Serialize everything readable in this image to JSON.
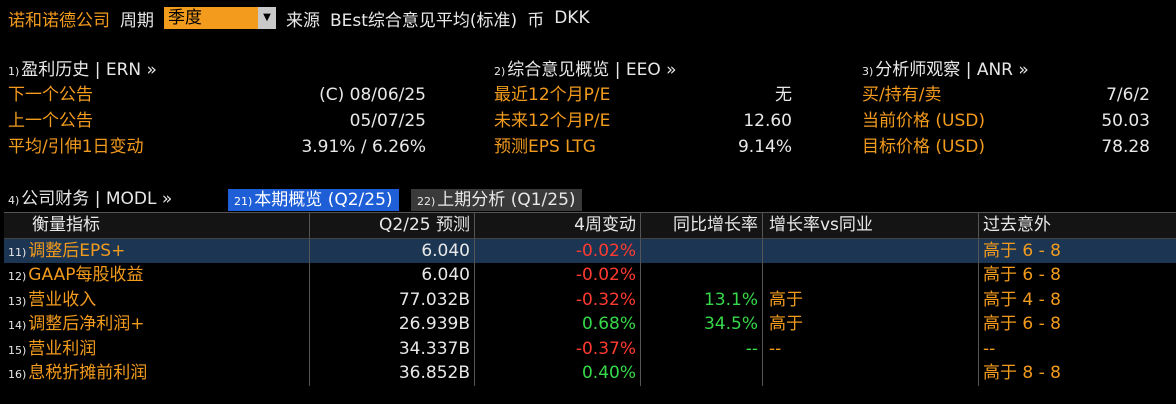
{
  "header": {
    "company": "诺和诺德公司",
    "period_label": "周期",
    "period_value": "季度",
    "source_label": "来源",
    "source_value": "BEst综合意见平均(标准)",
    "currency_label": "币",
    "currency_value": "DKK"
  },
  "panels": {
    "earnings": {
      "idx": "1)",
      "title": "盈利历史 | ERN »",
      "rows": [
        {
          "label": "下一个公告",
          "value": "(C)  08/06/25"
        },
        {
          "label": "上一个公告",
          "value": "05/07/25"
        },
        {
          "label": "平均/引伸1日变动",
          "value": "3.91% / 6.26%"
        }
      ]
    },
    "consensus": {
      "idx": "2)",
      "title": "综合意见概览 | EEO »",
      "rows": [
        {
          "label": "最近12个月P/E",
          "value": "无"
        },
        {
          "label": "未来12个月P/E",
          "value": "12.60"
        },
        {
          "label": "预测EPS LTG",
          "value": "9.14%"
        }
      ]
    },
    "analyst": {
      "idx": "3)",
      "title": "分析师观察 | ANR »",
      "rows": [
        {
          "label": "买/持有/卖",
          "value": "7/6/2"
        },
        {
          "label": "当前价格 (USD)",
          "value": "50.03"
        },
        {
          "label": "目标价格 (USD)",
          "value": "78.28"
        }
      ]
    }
  },
  "financials": {
    "idx": "4)",
    "title": "公司财务 | MODL »",
    "tab_current": {
      "idx": "21)",
      "label": "本期概览 (Q2/25)"
    },
    "tab_prev": {
      "idx": "22)",
      "label": "上期分析 (Q1/25)"
    }
  },
  "table": {
    "headers": [
      "衡量指标",
      "Q2/25 预测",
      "4周变动",
      "同比增长率",
      "增长率vs同业",
      "过去意外"
    ],
    "rows": [
      {
        "idx": "11)",
        "metric": "调整后EPS+",
        "forecast": "6.040",
        "change4w": "-0.02%",
        "change_dir": "red",
        "yoy": "",
        "vs_peer": "",
        "surprise": "高于 6 - 8"
      },
      {
        "idx": "12)",
        "metric": "GAAP每股收益",
        "forecast": "6.040",
        "change4w": "-0.02%",
        "change_dir": "red",
        "yoy": "",
        "vs_peer": "",
        "surprise": "高于 6 - 8"
      },
      {
        "idx": "13)",
        "metric": "营业收入",
        "forecast": "77.032B",
        "change4w": "-0.32%",
        "change_dir": "red",
        "yoy": "13.1%",
        "vs_peer": "高于",
        "surprise": "高于 4 - 8"
      },
      {
        "idx": "14)",
        "metric": "调整后净利润+",
        "forecast": "26.939B",
        "change4w": "0.68%",
        "change_dir": "green",
        "yoy": "34.5%",
        "vs_peer": "高于",
        "surprise": "高于 6 - 8"
      },
      {
        "idx": "15)",
        "metric": "营业利润",
        "forecast": "34.337B",
        "change4w": "-0.37%",
        "change_dir": "red",
        "yoy": "--",
        "vs_peer": "--",
        "surprise": "--"
      },
      {
        "idx": "16)",
        "metric": "息税折摊前利润",
        "forecast": "36.852B",
        "change4w": "0.40%",
        "change_dir": "green",
        "yoy": "",
        "vs_peer": "",
        "surprise": "高于 8 - 8"
      }
    ],
    "selected_row": 0
  },
  "colors": {
    "accent": "#f29b1d",
    "up": "#36d94a",
    "down": "#ff3b30",
    "tab_active": "#1e5fd8",
    "row_selected": "#1c3553"
  }
}
